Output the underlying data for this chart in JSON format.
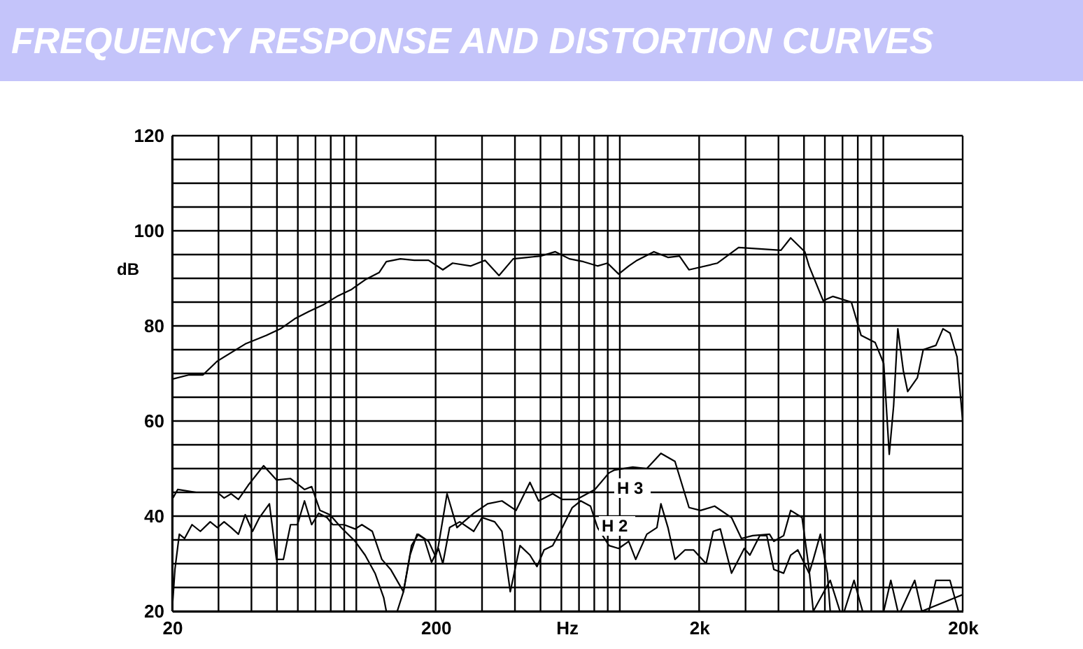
{
  "chart_data": {
    "type": "line",
    "title": "FREQUENCY RESPONSE AND DISTORTION CURVES",
    "xlabel": "Hz",
    "ylabel": "dB",
    "log": "x",
    "grid": true,
    "legend": false,
    "marker": "none",
    "line_style": "solid",
    "xlim": [
      20,
      20000
    ],
    "ylim": [
      20,
      120
    ],
    "xticks": [
      20,
      {
        "value": 30,
        "label": null
      },
      {
        "value": 40,
        "label": null
      },
      {
        "value": 50,
        "label": null
      },
      {
        "value": 60,
        "label": null
      },
      {
        "value": 70,
        "label": null
      },
      {
        "value": 80,
        "label": null
      },
      {
        "value": 90,
        "label": null
      },
      {
        "value": 100,
        "label": null
      },
      200,
      {
        "value": 300,
        "label": null
      },
      {
        "value": 400,
        "label": null
      },
      {
        "value": 500,
        "label": null
      },
      {
        "value": 600,
        "label": null
      },
      {
        "value": 700,
        "label": null
      },
      {
        "value": 800,
        "label": null
      },
      {
        "value": 900,
        "label": null
      },
      {
        "value": 1000,
        "label": null
      },
      {
        "value": 2000,
        "label": "2k"
      },
      {
        "value": 3000,
        "label": null
      },
      {
        "value": 4000,
        "label": null
      },
      {
        "value": 5000,
        "label": null
      },
      {
        "value": 6000,
        "label": null
      },
      {
        "value": 7000,
        "label": null
      },
      {
        "value": 8000,
        "label": null
      },
      {
        "value": 9000,
        "label": null
      },
      {
        "value": 10000,
        "label": null
      },
      {
        "value": 20000,
        "label": "20k"
      }
    ],
    "yticks": [
      20,
      {
        "value": 25,
        "label": null
      },
      {
        "value": 30,
        "label": null
      },
      {
        "value": 35,
        "label": null
      },
      40,
      {
        "value": 45,
        "label": null
      },
      {
        "value": 50,
        "label": null
      },
      {
        "value": 55,
        "label": null
      },
      60,
      {
        "value": 65,
        "label": null
      },
      {
        "value": 70,
        "label": null
      },
      {
        "value": 75,
        "label": null
      },
      80,
      {
        "value": 85,
        "label": null
      },
      {
        "value": 90,
        "label": null
      },
      {
        "value": 95,
        "label": null
      },
      100,
      {
        "value": 105,
        "label": null
      },
      {
        "value": 110,
        "label": null
      },
      {
        "value": 115,
        "label": null
      },
      120
    ],
    "series": [
      {
        "color": "#000000",
        "x": [
          20,
          23.2,
          26.2,
          29.7,
          37.9,
          45.6,
          51.6,
          58.4,
          66,
          74.7,
          84.5,
          95.5,
          108,
          122,
          130,
          147,
          166,
          188,
          213,
          232,
          272,
          308,
          348,
          394,
          445,
          503,
          569,
          644,
          728,
          823,
          898,
          990,
          1081,
          1163,
          1347,
          1523,
          1684,
          1831,
          2348,
          2824,
          3396,
          4086,
          4450,
          5034,
          5226,
          5910,
          6438,
          7562,
          8234,
          9312,
          10034,
          10412,
          10530,
          10940,
          11350,
          11908,
          12370,
          13466,
          14172,
          15826,
          16836,
          17900,
          19040,
          20000
        ],
        "values": [
          68.8,
          69.7,
          69.7,
          72.6,
          76.2,
          78,
          79.4,
          81.5,
          83,
          84.4,
          86.2,
          87.6,
          89.7,
          91.2,
          93.5,
          94.1,
          93.8,
          93.8,
          91.8,
          93.2,
          92.6,
          93.8,
          90.6,
          94.1,
          94.4,
          94.7,
          95.6,
          94.1,
          93.5,
          92.6,
          93.2,
          90.9,
          92.6,
          93.8,
          95.6,
          94.4,
          94.7,
          91.8,
          93.2,
          96.5,
          96.2,
          95.9,
          98.5,
          95.6,
          92.6,
          85.3,
          86.2,
          85,
          78,
          76.5,
          72.1,
          57.4,
          53,
          63.2,
          79.4,
          70.6,
          66.2,
          69.1,
          75,
          75.9,
          79.4,
          78.5,
          73.5,
          60
        ]
      },
      {
        "color": "#000000",
        "x": [
          20,
          21,
          24.7,
          29.7,
          31.5,
          33.5,
          35.7,
          38.9,
          44.5,
          49.8,
          56.3,
          63.6,
          67.7,
          72.8,
          79.4,
          87.6,
          99,
          108,
          118,
          127,
          130,
          135,
          143,
          151,
          162,
          172,
          188,
          200,
          205,
          221,
          241,
          279,
          315,
          357,
          404,
          456,
          492,
          556,
          605,
          685,
          804,
          910,
          955,
          1120,
          1266,
          1432,
          1619,
          1831,
          2025,
          2290,
          2654,
          2894,
          3194,
          3700,
          3841,
          4184,
          4450,
          4916,
          5226,
          5423,
          6287,
          6846,
          11634,
          13157,
          13996,
          20000
        ],
        "values": [
          43.5,
          45.6,
          45,
          45,
          43.8,
          44.7,
          43.5,
          46.5,
          50.6,
          47.6,
          47.9,
          45.6,
          46.2,
          41.2,
          40.3,
          37.6,
          34.7,
          31.8,
          27.9,
          22.9,
          20,
          null,
          20,
          24.1,
          33.8,
          36.2,
          34.7,
          31.5,
          33.8,
          44.7,
          37.6,
          40.6,
          42.6,
          43.2,
          41.2,
          47.1,
          43.2,
          44.7,
          43.5,
          43.5,
          45.6,
          49.1,
          49.7,
          50.3,
          50,
          53.2,
          51.5,
          41.8,
          41.2,
          42.1,
          39.7,
          35.3,
          35.9,
          36.2,
          34.7,
          35.9,
          41.2,
          39.7,
          28.8,
          20,
          26.5,
          20,
          20,
          26.5,
          20,
          23.5
        ]
      },
      {
        "color": "#000000",
        "x": [
          20,
          20.5,
          21.3,
          22.3,
          23.8,
          25.6,
          27.9,
          29.7,
          31.5,
          33.5,
          35.7,
          37.9,
          40.4,
          42.9,
          46.8,
          49.8,
          52.9,
          56.3,
          59.8,
          63.6,
          67.7,
          72,
          77.4,
          81.4,
          89.8,
          99,
          105,
          115,
          125,
          135,
          151,
          160,
          170,
          181,
          193,
          205,
          213,
          226,
          247,
          279,
          300,
          335,
          357,
          384,
          418,
          456,
          485,
          516,
          556,
          605,
          660,
          711,
          774,
          823,
          910,
          990,
          1081,
          1149,
          1266,
          1383,
          1432,
          1523,
          1619,
          1769,
          1904,
          2126,
          2262,
          2406,
          2654,
          2966,
          3116,
          3396,
          3612,
          3841,
          4184,
          4450,
          4734,
          5226,
          5423,
          5768,
          6132,
          6287,
          7108,
          7742,
          8344,
          10034,
          10676,
          11350,
          14882,
          15826,
          17900,
          19276
        ],
        "values": [
          20,
          28.8,
          36.2,
          35.3,
          38.2,
          36.8,
          38.8,
          37.6,
          38.8,
          37.6,
          36.2,
          40.3,
          36.8,
          39.7,
          42.6,
          30.9,
          30.9,
          38.2,
          38.2,
          43.2,
          38.2,
          40.6,
          39.7,
          38.2,
          38.2,
          37.3,
          38.2,
          36.8,
          30.9,
          28.8,
          24.1,
          31.8,
          36.2,
          35.3,
          30.3,
          33.2,
          30,
          37.6,
          38.8,
          36.8,
          39.7,
          38.8,
          36.8,
          24.1,
          33.8,
          31.8,
          29.4,
          32.9,
          33.8,
          37.6,
          41.8,
          43.2,
          42.1,
          37.6,
          33.8,
          33.2,
          34.7,
          30.9,
          36.2,
          37.6,
          42.6,
          37.6,
          30.9,
          32.9,
          32.9,
          30,
          36.8,
          37.3,
          28,
          33.2,
          31.8,
          35.9,
          35.9,
          28.8,
          28,
          31.8,
          32.9,
          28,
          30.9,
          36.2,
          28,
          20,
          20,
          26.5,
          20,
          20,
          26.5,
          20,
          20,
          26.5,
          26.5,
          20
        ]
      }
    ],
    "annotations": [
      "H 3",
      "H 2"
    ]
  }
}
